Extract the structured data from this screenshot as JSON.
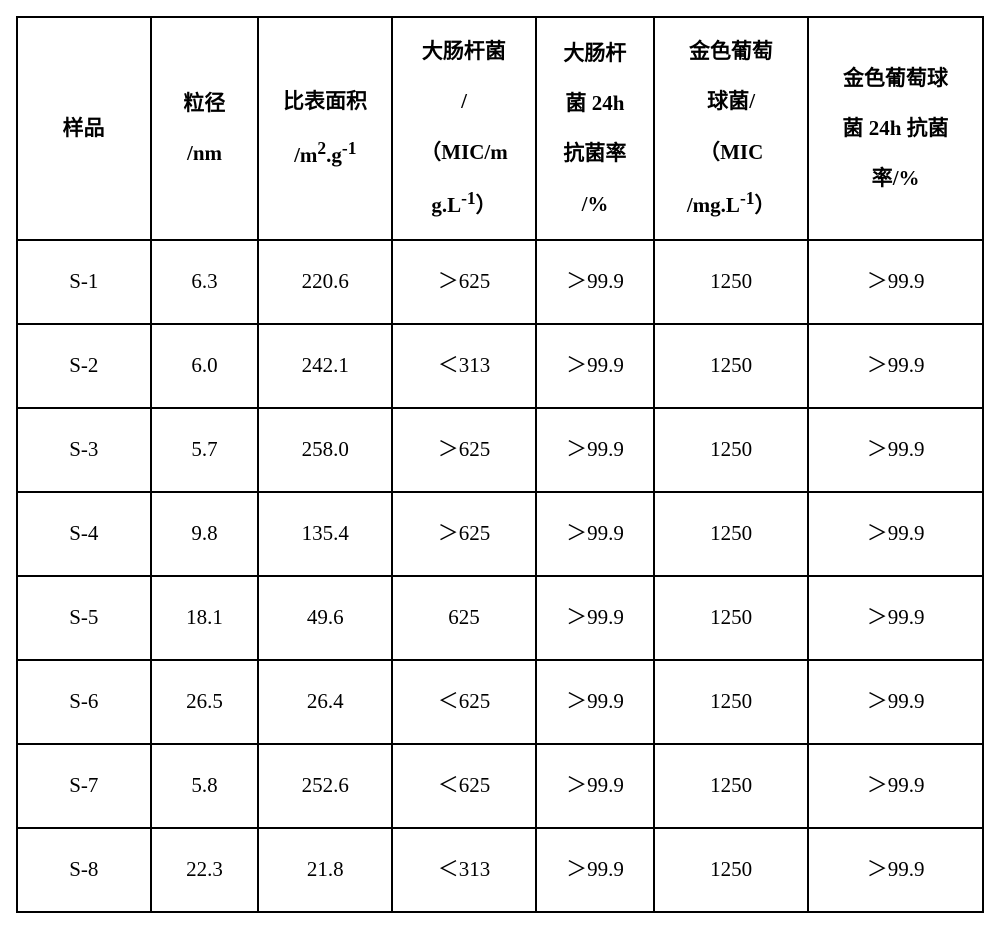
{
  "table": {
    "columns": [
      {
        "key": "sample",
        "header": "样品",
        "cls": "col-sample"
      },
      {
        "key": "size",
        "header": "粒径<br>/nm",
        "cls": "col-size"
      },
      {
        "key": "surface",
        "header": "比表面积<br>/m<sup>2</sup>.g<sup>-1</sup>",
        "cls": "col-surface"
      },
      {
        "key": "ecoli_mic",
        "header": "大肠杆菌<br>/<br>（MIC/m<br>g.L<sup>-1</sup>）",
        "cls": "col-ecoli-mic"
      },
      {
        "key": "ecoli_rate",
        "header": "大肠杆<br>菌 24h<br>抗菌率<br>/%",
        "cls": "col-ecoli-rate"
      },
      {
        "key": "sa_mic",
        "header": "金色葡萄<br>球菌/<br>（MIC<br>/mg.L<sup>-1</sup>）",
        "cls": "col-sa-mic"
      },
      {
        "key": "sa_rate",
        "header": "金色葡萄球<br>菌 24h 抗菌<br>率/%",
        "cls": "col-sa-rate"
      }
    ],
    "rows": [
      {
        "sample": "S-1",
        "size": "6.3",
        "surface": "220.6",
        "ecoli_mic": "＞625",
        "ecoli_rate": "＞99.9",
        "sa_mic": "1250",
        "sa_rate": "＞99.9"
      },
      {
        "sample": "S-2",
        "size": "6.0",
        "surface": "242.1",
        "ecoli_mic": "＜313",
        "ecoli_rate": "＞99.9",
        "sa_mic": "1250",
        "sa_rate": "＞99.9"
      },
      {
        "sample": "S-3",
        "size": "5.7",
        "surface": "258.0",
        "ecoli_mic": "＞625",
        "ecoli_rate": "＞99.9",
        "sa_mic": "1250",
        "sa_rate": "＞99.9"
      },
      {
        "sample": "S-4",
        "size": "9.8",
        "surface": "135.4",
        "ecoli_mic": "＞625",
        "ecoli_rate": "＞99.9",
        "sa_mic": "1250",
        "sa_rate": "＞99.9"
      },
      {
        "sample": "S-5",
        "size": "18.1",
        "surface": "49.6",
        "ecoli_mic": "625",
        "ecoli_rate": "＞99.9",
        "sa_mic": "1250",
        "sa_rate": "＞99.9"
      },
      {
        "sample": "S-6",
        "size": "26.5",
        "surface": "26.4",
        "ecoli_mic": "＜625",
        "ecoli_rate": "＞99.9",
        "sa_mic": "1250",
        "sa_rate": "＞99.9"
      },
      {
        "sample": "S-7",
        "size": "5.8",
        "surface": "252.6",
        "ecoli_mic": "＜625",
        "ecoli_rate": "＞99.9",
        "sa_mic": "1250",
        "sa_rate": "＞99.9"
      },
      {
        "sample": "S-8",
        "size": "22.3",
        "surface": "21.8",
        "ecoli_mic": "＜313",
        "ecoli_rate": "＞99.9",
        "sa_mic": "1250",
        "sa_rate": "＞99.9"
      }
    ],
    "border_color": "#000000",
    "background_color": "#ffffff",
    "header_fontsize": 21,
    "cell_fontsize": 21
  }
}
